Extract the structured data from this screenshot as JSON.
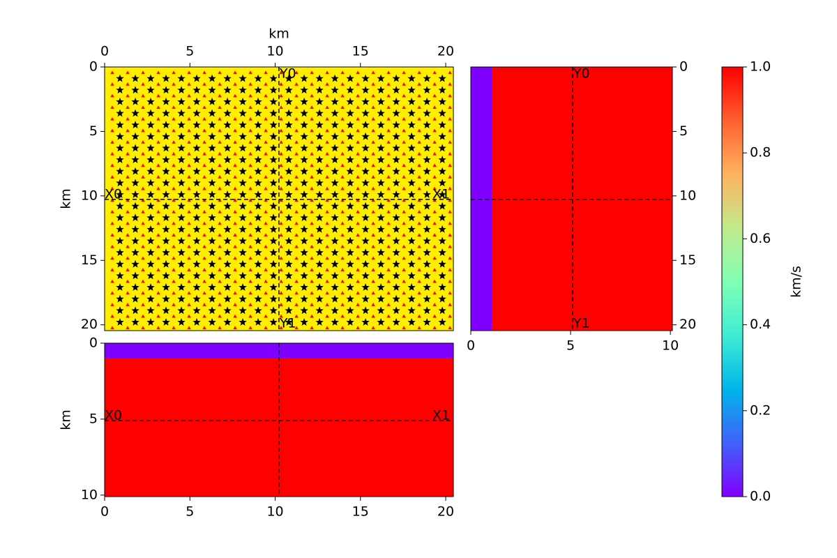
{
  "chart_data": [
    {
      "type": "map",
      "xlabel": "km",
      "ylabel": "km",
      "xlim": [
        0,
        20.45
      ],
      "ylim": [
        0,
        20.45
      ],
      "xticks": [
        0,
        5,
        10,
        15,
        20
      ],
      "yticks": [
        0,
        5,
        10,
        15,
        20
      ],
      "background": "#ffee00",
      "markers": [
        {
          "marker": "triangle",
          "color": "#ff0000",
          "x": [
            0.45,
            1.35,
            2.25,
            3.15,
            4.05,
            4.95,
            5.85,
            6.75,
            7.65,
            8.55,
            9.45,
            10.35,
            11.25,
            12.15,
            13.05,
            13.95,
            14.85,
            15.75,
            16.65,
            17.55,
            18.45,
            19.35,
            20.25
          ],
          "y": [
            0.45,
            1.35,
            2.25,
            3.15,
            4.05,
            4.95,
            5.85,
            6.75,
            7.65,
            8.55,
            9.45,
            10.35,
            11.25,
            12.15,
            13.05,
            13.95,
            14.85,
            15.75,
            16.65,
            17.55,
            18.45,
            19.35,
            20.25
          ]
        },
        {
          "marker": "star",
          "color": "#000000",
          "x": [
            0.9,
            1.8,
            2.7,
            3.6,
            4.5,
            5.4,
            6.3,
            7.2,
            8.1,
            9,
            9.9,
            10.8,
            11.7,
            12.6,
            13.5,
            14.4,
            15.3,
            16.2,
            17.1,
            18,
            18.9,
            19.8
          ],
          "y": [
            0.9,
            1.8,
            2.7,
            3.6,
            4.5,
            5.4,
            6.3,
            7.2,
            8.1,
            9,
            9.9,
            10.8,
            11.7,
            12.6,
            13.5,
            14.4,
            15.3,
            16.2,
            17.1,
            18,
            18.9,
            19.8
          ]
        }
      ],
      "crosshair": {
        "x": 10.22,
        "y": 10.27
      },
      "x_labels": [
        "X0",
        "X1"
      ],
      "y_labels": [
        "Y0",
        "Y1"
      ]
    },
    {
      "type": "section",
      "xlim": [
        0,
        10.1
      ],
      "ylim": [
        0,
        20.45
      ],
      "xticks": [
        0,
        5,
        10
      ],
      "yticks": [
        0,
        5,
        10,
        15,
        20
      ],
      "background": "#ff0000",
      "layer": {
        "x": [
          0,
          1.05
        ],
        "color": "#8000ff"
      },
      "crosshair": {
        "x": 5.1,
        "y": 10.27
      },
      "y_labels": [
        "Y0",
        "Y1"
      ]
    },
    {
      "type": "section",
      "ylabel": "km",
      "xlim": [
        0,
        20.45
      ],
      "ylim": [
        0,
        10.1
      ],
      "xticks": [
        0,
        5,
        10,
        15,
        20
      ],
      "yticks": [
        0,
        5,
        10
      ],
      "background": "#ff0000",
      "layer": {
        "y": [
          0,
          1.0
        ],
        "color": "#8000ff"
      },
      "crosshair": {
        "x": 10.22,
        "y": 5.1
      },
      "x_labels": [
        "X0",
        "X1"
      ]
    },
    {
      "type": "colorbar",
      "label": "km/s",
      "ylim": [
        0,
        1
      ],
      "yticks": [
        {
          "value": 0,
          "label": "0.0"
        },
        {
          "value": 0.2,
          "label": "0.2"
        },
        {
          "value": 0.4,
          "label": "0.4"
        },
        {
          "value": 0.6,
          "label": "0.6"
        },
        {
          "value": 0.8,
          "label": "0.8"
        },
        {
          "value": 1,
          "label": "1.0"
        }
      ],
      "colormap": [
        "#8000ff",
        "#4062fa",
        "#00b5eb",
        "#40ecd4",
        "#80ffb4",
        "#c0eb8d",
        "#ffb360",
        "#ff6030",
        "#ff0000"
      ]
    }
  ]
}
